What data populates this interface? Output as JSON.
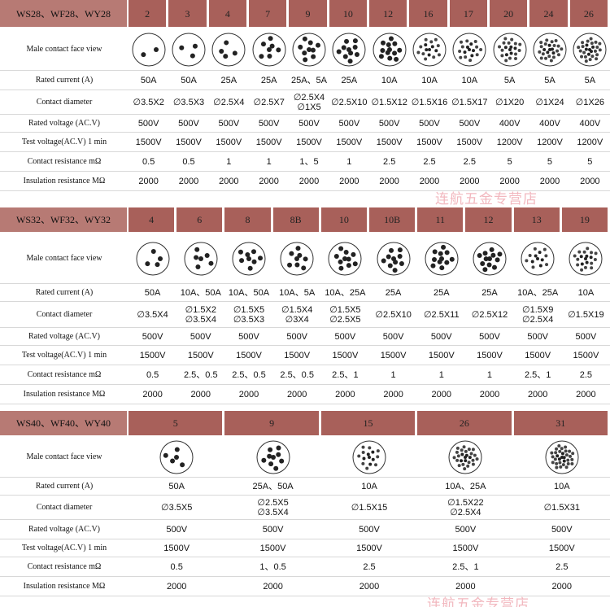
{
  "watermark": "连航五金专营店",
  "tables": [
    {
      "title": "WS28、WF28、WY28",
      "columns": [
        "2",
        "3",
        "4",
        "7",
        "9",
        "10",
        "12",
        "16",
        "17",
        "20",
        "24",
        "26"
      ],
      "rows": [
        {
          "label": "Male contact face view"
        },
        {
          "label": "Rated current (A)",
          "values": [
            "50A",
            "50A",
            "25A",
            "25A",
            "25A、5A",
            "25A",
            "10A",
            "10A",
            "10A",
            "5A",
            "5A",
            "5A"
          ]
        },
        {
          "label": "Contact diameter",
          "values": [
            "∅3.5X2",
            "∅3.5X3",
            "∅2.5X4",
            "∅2.5X7",
            [
              "∅2.5X4",
              "∅1X5"
            ],
            "∅2.5X10",
            "∅1.5X12",
            "∅1.5X16",
            "∅1.5X17",
            "∅1X20",
            "∅1X24",
            "∅1X26"
          ]
        },
        {
          "label": "Rated voltage (AC.V)",
          "values": [
            "500V",
            "500V",
            "500V",
            "500V",
            "500V",
            "500V",
            "500V",
            "500V",
            "500V",
            "400V",
            "400V",
            "400V"
          ]
        },
        {
          "label": "Test voltage(AC.V) 1 min",
          "values": [
            "1500V",
            "1500V",
            "1500V",
            "1500V",
            "1500V",
            "1500V",
            "1500V",
            "1500V",
            "1500V",
            "1200V",
            "1200V",
            "1200V"
          ]
        },
        {
          "label": "Contact resistance mΩ",
          "values": [
            "0.5",
            "0.5",
            "1",
            "1",
            "1、5",
            "1",
            "2.5",
            "2.5",
            "2.5",
            "5",
            "5",
            "5"
          ]
        },
        {
          "label": "Insulation resistance MΩ",
          "values": [
            "2000",
            "2000",
            "2000",
            "2000",
            "2000",
            "2000",
            "2000",
            "2000",
            "2000",
            "2000",
            "2000",
            "2000"
          ]
        }
      ]
    },
    {
      "title": "WS32、WF32、WY32",
      "columns": [
        "4",
        "6",
        "8",
        "8B",
        "10",
        "10B",
        "11",
        "12",
        "13",
        "19"
      ],
      "rows": [
        {
          "label": "Male contact face view"
        },
        {
          "label": "Rated current (A)",
          "values": [
            "50A",
            "10A、50A",
            "10A、50A",
            "10A、5A",
            "10A、25A",
            "25A",
            "25A",
            "25A",
            "10A、25A",
            "10A"
          ]
        },
        {
          "label": "Contact diameter",
          "values": [
            "∅3.5X4",
            [
              "∅1.5X2",
              "∅3.5X4"
            ],
            [
              "∅1.5X5",
              "∅3.5X3"
            ],
            [
              "∅1.5X4",
              "∅3X4"
            ],
            [
              "∅1.5X5",
              "∅2.5X5"
            ],
            "∅2.5X10",
            "∅2.5X11",
            "∅2.5X12",
            [
              "∅1.5X9",
              "∅2.5X4"
            ],
            "∅1.5X19"
          ]
        },
        {
          "label": "Rated voltage (AC.V)",
          "values": [
            "500V",
            "500V",
            "500V",
            "500V",
            "500V",
            "500V",
            "500V",
            "500V",
            "500V",
            "500V"
          ]
        },
        {
          "label": "Test voltage(AC.V) 1 min",
          "values": [
            "1500V",
            "1500V",
            "1500V",
            "1500V",
            "1500V",
            "1500V",
            "1500V",
            "1500V",
            "1500V",
            "1500V"
          ]
        },
        {
          "label": "Contact resistance mΩ",
          "values": [
            "0.5",
            "2.5、0.5",
            "2.5、0.5",
            "2.5、0.5",
            "2.5、1",
            "1",
            "1",
            "1",
            "2.5、1",
            "2.5"
          ]
        },
        {
          "label": "Insulation resistance MΩ",
          "values": [
            "2000",
            "2000",
            "2000",
            "2000",
            "2000",
            "2000",
            "2000",
            "2000",
            "2000",
            "2000"
          ]
        }
      ]
    },
    {
      "title": "WS40、WF40、WY40",
      "columns": [
        "5",
        "9",
        "15",
        "26",
        "31"
      ],
      "rows": [
        {
          "label": "Male contact face view"
        },
        {
          "label": "Rated current (A)",
          "values": [
            "50A",
            "25A、50A",
            "10A",
            "10A、25A",
            "10A"
          ]
        },
        {
          "label": "Contact diameter",
          "values": [
            "∅3.5X5",
            [
              "∅2.5X5",
              "∅3.5X4"
            ],
            "∅1.5X15",
            [
              "∅1.5X22",
              "∅2.5X4"
            ],
            "∅1.5X31"
          ]
        },
        {
          "label": "Rated voltage (AC.V)",
          "values": [
            "500V",
            "500V",
            "500V",
            "500V",
            "500V"
          ]
        },
        {
          "label": "Test voltage(AC.V) 1 min",
          "values": [
            "1500V",
            "1500V",
            "1500V",
            "1500V",
            "1500V"
          ]
        },
        {
          "label": "Contact resistance mΩ",
          "values": [
            "0.5",
            "1、0.5",
            "2.5",
            "2.5、1",
            "2.5"
          ]
        },
        {
          "label": "Insulation resistance MΩ",
          "values": [
            "2000",
            "2000",
            "2000",
            "2000",
            "2000"
          ]
        }
      ]
    }
  ]
}
